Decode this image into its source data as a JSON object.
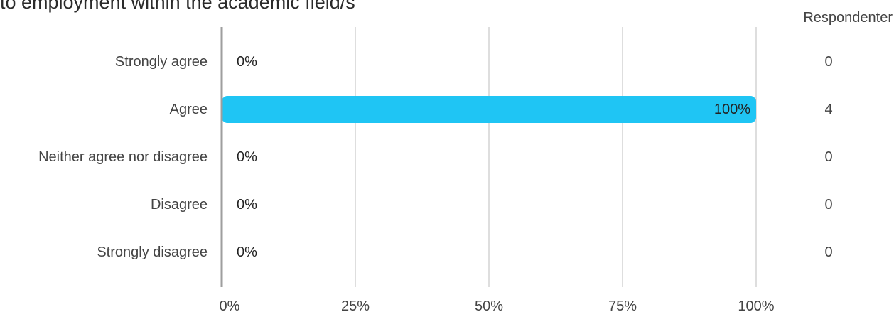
{
  "page": {
    "title": "to employment within the academic field/s",
    "respondents_header": "Respondenter"
  },
  "colors": {
    "bar": "#1fc5f4",
    "grid": "#bdbdbd",
    "axis": "#9e9e9e",
    "label": "#444444",
    "value_text": "#222222"
  },
  "chart_data": {
    "type": "bar",
    "orientation": "horizontal",
    "categories": [
      "Strongly agree",
      "Agree",
      "Neither agree nor disagree",
      "Disagree",
      "Strongly disagree"
    ],
    "values": [
      0,
      100,
      0,
      0,
      0
    ],
    "value_labels": [
      "0%",
      "100%",
      "0%",
      "0%",
      "0%"
    ],
    "respondents": [
      0,
      4,
      0,
      0,
      0
    ],
    "xlim": [
      0,
      100
    ],
    "x_ticks": [
      0,
      25,
      50,
      75,
      100
    ],
    "x_tick_labels": [
      "0%",
      "25%",
      "50%",
      "75%",
      "100%"
    ],
    "grid": true
  }
}
